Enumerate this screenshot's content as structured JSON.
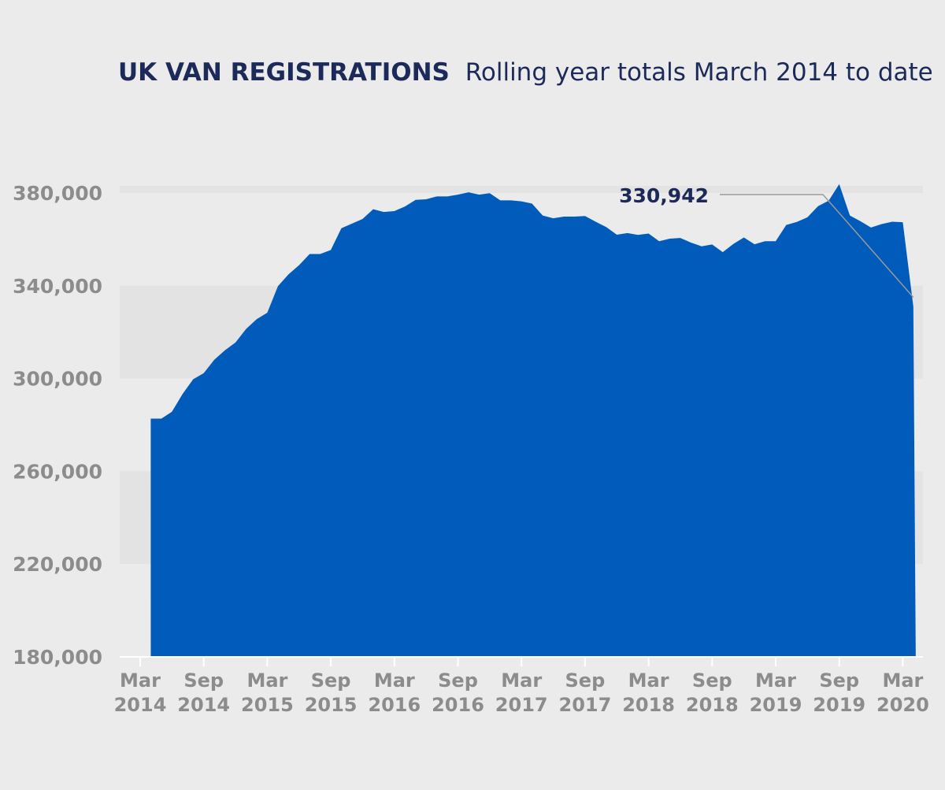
{
  "chart_data": {
    "type": "area",
    "title": "UK VAN REGISTRATIONS",
    "subtitle": "Rolling year totals March 2014 to date",
    "xlabel": "",
    "ylabel": "",
    "ylim": [
      180000,
      380000
    ],
    "yticks": [
      "180,000",
      "220,000",
      "260,000",
      "300,000",
      "340,000",
      "380,000"
    ],
    "xticks": [
      {
        "month": "Mar",
        "year": "2014"
      },
      {
        "month": "Sep",
        "year": "2014"
      },
      {
        "month": "Mar",
        "year": "2015"
      },
      {
        "month": "Sep",
        "year": "2015"
      },
      {
        "month": "Mar",
        "year": "2016"
      },
      {
        "month": "Sep",
        "year": "2016"
      },
      {
        "month": "Mar",
        "year": "2017"
      },
      {
        "month": "Sep",
        "year": "2017"
      },
      {
        "month": "Mar",
        "year": "2018"
      },
      {
        "month": "Sep",
        "year": "2018"
      },
      {
        "month": "Mar",
        "year": "2019"
      },
      {
        "month": "Sep",
        "year": "2019"
      },
      {
        "month": "Mar",
        "year": "2020"
      }
    ],
    "grid": "alternating horizontal bands",
    "area_color": "#005bbb",
    "annotation": {
      "label": "330,942",
      "value": 330942
    },
    "x_start": "2014-03",
    "values": [
      282700,
      282700,
      285700,
      293300,
      299700,
      302300,
      308100,
      312200,
      315600,
      321400,
      325600,
      328400,
      339800,
      344900,
      348900,
      353700,
      353700,
      355400,
      364800,
      366800,
      368800,
      373000,
      371800,
      372200,
      374200,
      377000,
      377300,
      378500,
      378500,
      379300,
      380300,
      379300,
      379900,
      376800,
      376800,
      376400,
      375400,
      370300,
      369100,
      369800,
      369800,
      370100,
      367600,
      365300,
      362000,
      362700,
      361900,
      362500,
      359200,
      360300,
      360600,
      358600,
      357000,
      357800,
      354500,
      358000,
      360800,
      357900,
      359200,
      359200,
      366200,
      367500,
      369500,
      374300,
      376700,
      383800,
      370300,
      367800,
      365100,
      366600,
      367600,
      367400,
      330942
    ]
  }
}
